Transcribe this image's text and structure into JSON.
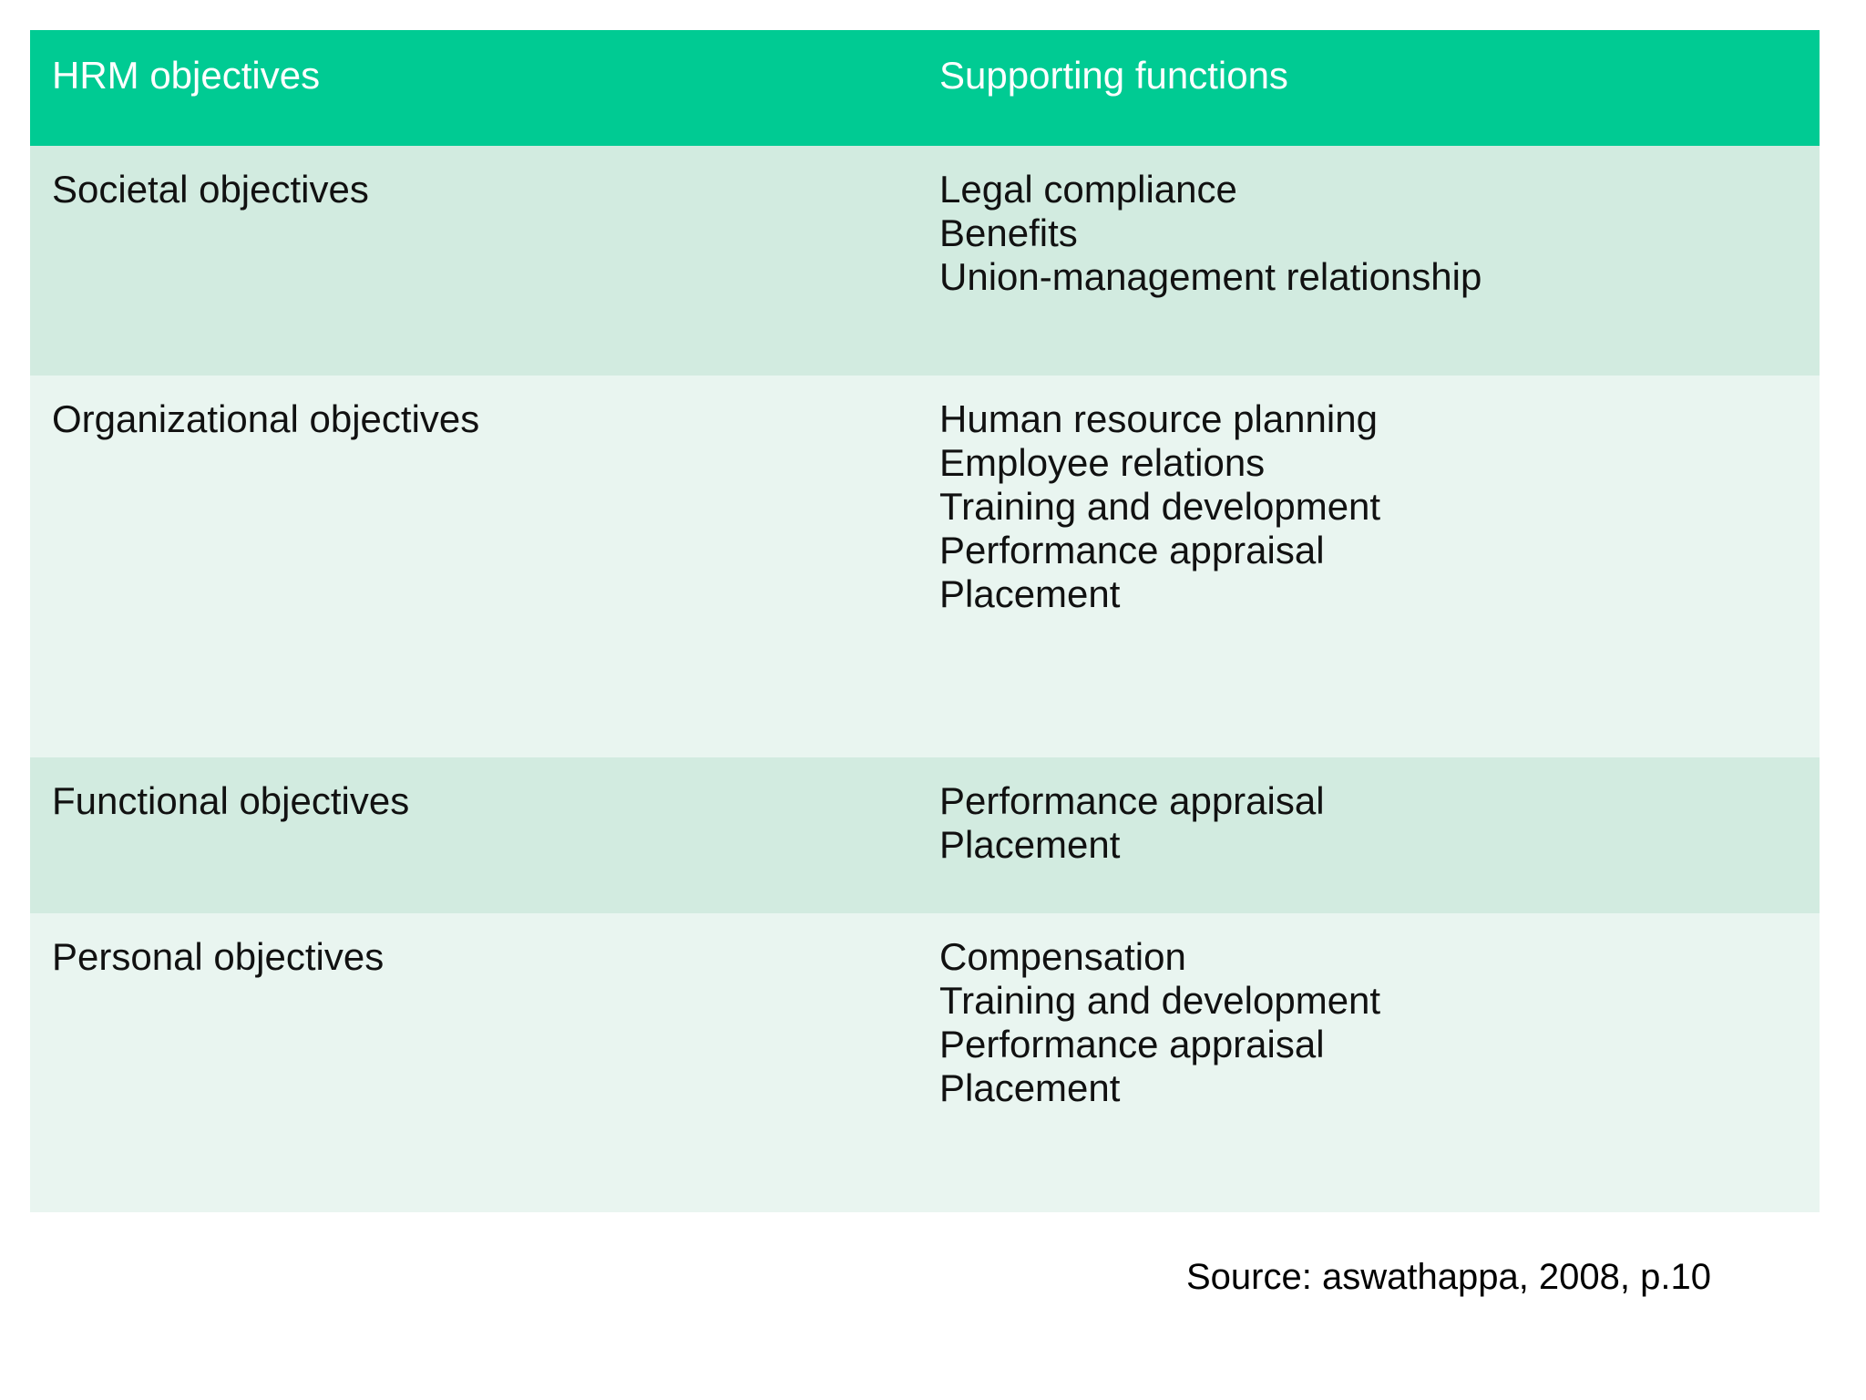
{
  "chart_data": {
    "type": "table",
    "title": "",
    "columns": [
      "HRM objectives",
      "Supporting functions"
    ],
    "rows": [
      {
        "objective": "Societal objectives",
        "functions": [
          "Legal compliance",
          "Benefits",
          "Union-management relationship"
        ]
      },
      {
        "objective": "Organizational objectives",
        "functions": [
          "Human resource planning",
          "Employee relations",
          "Training and development",
          "Performance appraisal",
          "Placement"
        ]
      },
      {
        "objective": "Functional objectives",
        "functions": [
          "Performance appraisal",
          "Placement"
        ]
      },
      {
        "objective": "Personal objectives",
        "functions": [
          "Compensation",
          "Training and development",
          "Performance appraisal",
          "Placement"
        ]
      }
    ],
    "source": "Source: aswathappa, 2008, p.10",
    "layout": "two-column table, header row green, body rows alternating pale green, no gridlines"
  },
  "colors": {
    "header_bg": "#00cb93",
    "header_text": "#ffffff",
    "row_dark": "#d2ebe0",
    "row_light": "#e9f5f0",
    "body_text": "#111111"
  }
}
